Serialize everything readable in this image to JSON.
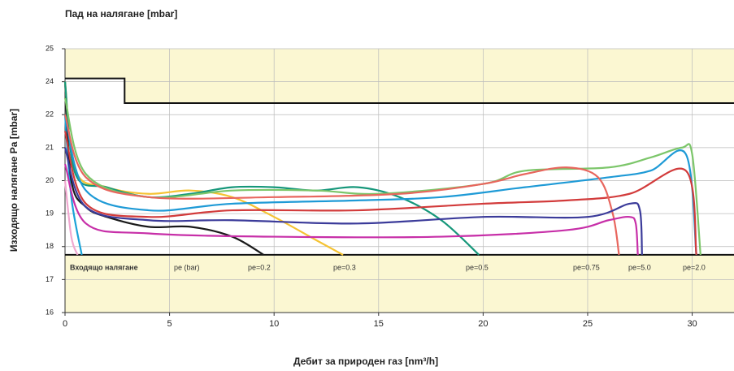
{
  "chart_data": {
    "type": "line",
    "title": "Пад на налягане [mbar]",
    "xlabel": "Дебит за природен газ [nm³/h]",
    "ylabel": "Изходящо налягане Pa  [mbar]",
    "xlim": [
      0,
      32
    ],
    "ylim": [
      16,
      24
    ],
    "xticks": [
      0,
      5,
      10,
      15,
      20,
      25,
      30
    ],
    "yticks": [
      16,
      17,
      18,
      19,
      20,
      21,
      22,
      {
        "value": 23,
        "label": "24"
      },
      {
        "value": 24,
        "label": "25"
      }
    ],
    "grid": true,
    "band_color": "#fbf7d2",
    "upper_limit": {
      "x": [
        0,
        2.85,
        2.85,
        32
      ],
      "values": [
        23.1,
        23.1,
        22.35,
        22.35
      ]
    },
    "lower_limit": 17.75,
    "annotations": [
      "Входящо налягане",
      "pe (bar)",
      "pe=0.2",
      "pe=0.3",
      "pe=0.5",
      "pe=0.75",
      "pe=5.0",
      "pe=2.0"
    ],
    "series": [
      {
        "color": "#1aa3d8",
        "x": [
          0,
          0.3,
          0.8
        ],
        "values": [
          22,
          19.5,
          17.75
        ]
      },
      {
        "color": "#f0a8d0",
        "x": [
          0,
          0.3,
          0.6
        ],
        "values": [
          20,
          18.3,
          17.75
        ]
      },
      {
        "color": "#1a1a1a",
        "x": [
          0,
          0.3,
          1,
          2,
          4,
          6,
          8,
          9.5
        ],
        "values": [
          23,
          20,
          19.2,
          18.9,
          18.6,
          18.6,
          18.3,
          17.75
        ]
      },
      {
        "color": "#f5c333",
        "x": [
          0,
          0.5,
          2,
          4,
          6,
          8,
          10,
          12,
          13.3
        ],
        "values": [
          23,
          20.3,
          19.8,
          19.6,
          19.7,
          19.5,
          18.9,
          18.2,
          17.75
        ]
      },
      {
        "color": "#16977a",
        "x": [
          0,
          0.5,
          2,
          4,
          6,
          8,
          10,
          12,
          14,
          16,
          18,
          19.8
        ],
        "values": [
          23,
          20.2,
          19.8,
          19.5,
          19.6,
          19.8,
          19.8,
          19.7,
          19.8,
          19.5,
          18.8,
          17.75
        ]
      },
      {
        "color": "#7cc66a",
        "x": [
          0,
          1,
          4,
          8,
          12,
          15,
          20,
          22,
          26,
          28,
          29.5,
          30,
          30.4
        ],
        "values": [
          22.5,
          20.2,
          19.5,
          19.7,
          19.7,
          19.6,
          19.9,
          20.3,
          20.4,
          20.7,
          21,
          20.8,
          17.75
        ]
      },
      {
        "color": "#1e9ad6",
        "x": [
          0,
          1,
          4,
          8,
          14,
          18,
          22,
          26,
          28,
          29.7,
          30.2
        ],
        "values": [
          22,
          19.7,
          19.1,
          19.3,
          19.4,
          19.5,
          19.8,
          20.1,
          20.3,
          20.8,
          17.75
        ]
      },
      {
        "color": "#d23b3b",
        "x": [
          0,
          1,
          4,
          8,
          14,
          20,
          24,
          27,
          29.7,
          30.2
        ],
        "values": [
          21.5,
          19.3,
          18.9,
          19.1,
          19.1,
          19.3,
          19.4,
          19.6,
          20.3,
          17.75
        ]
      },
      {
        "color": "#e8665e",
        "x": [
          0,
          1,
          4,
          10,
          16,
          20,
          22,
          24,
          25.5,
          26.2,
          26.5
        ],
        "values": [
          22,
          20.1,
          19.5,
          19.5,
          19.6,
          19.9,
          20.2,
          20.4,
          20.1,
          19,
          17.75
        ]
      },
      {
        "color": "#3b3b9a",
        "x": [
          0,
          1,
          4,
          8,
          14,
          20,
          25,
          27,
          27.5,
          27.6
        ],
        "values": [
          21,
          19.2,
          18.8,
          18.8,
          18.7,
          18.9,
          18.9,
          19.3,
          19.1,
          17.75
        ]
      },
      {
        "color": "#c72fa8",
        "x": [
          0,
          1,
          4,
          10,
          18,
          24,
          26,
          27,
          27.3,
          27.4
        ],
        "values": [
          20.5,
          18.7,
          18.4,
          18.3,
          18.3,
          18.5,
          18.8,
          18.9,
          18.7,
          17.75
        ]
      }
    ]
  }
}
